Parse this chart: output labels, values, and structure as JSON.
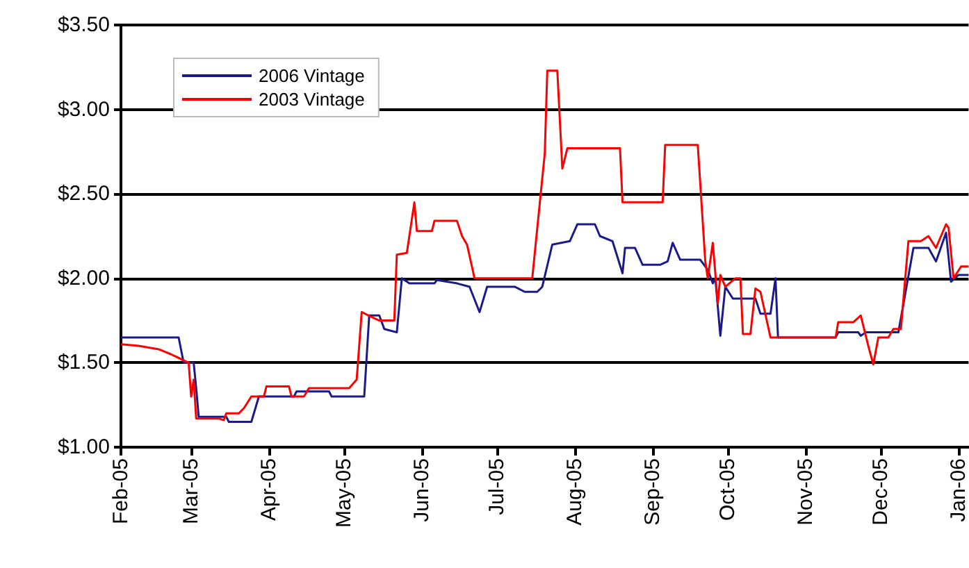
{
  "chart_data": {
    "type": "line",
    "legend": "top left",
    "grid": "y",
    "marker": "none",
    "line_style": "solid",
    "xlim": [
      "2005-02-01",
      "2006-01-05"
    ],
    "xticks": [
      {
        "value": "2005-02-01",
        "label": "Feb-05"
      },
      {
        "value": "2005-03-01",
        "label": "Mar-05"
      },
      {
        "value": "2005-04-01",
        "label": "Apr-05"
      },
      {
        "value": "2005-05-01",
        "label": "May-05"
      },
      {
        "value": "2005-06-01",
        "label": "Jun-05"
      },
      {
        "value": "2005-07-01",
        "label": "Jul-05"
      },
      {
        "value": "2005-08-01",
        "label": "Aug-05"
      },
      {
        "value": "2005-09-01",
        "label": "Sep-05"
      },
      {
        "value": "2005-10-01",
        "label": "Oct-05"
      },
      {
        "value": "2005-11-01",
        "label": "Nov-05"
      },
      {
        "value": "2005-12-01",
        "label": "Dec-05"
      },
      {
        "value": "2006-01-01",
        "label": "Jan-06"
      }
    ],
    "ylim": [
      1,
      3.5
    ],
    "yticks": [
      {
        "value": 1,
        "label": "$1.00"
      },
      {
        "value": 1.5,
        "label": "$1.50"
      },
      {
        "value": 2,
        "label": "$2.00"
      },
      {
        "value": 2.5,
        "label": "$2.50"
      },
      {
        "value": 3,
        "label": "$3.00"
      },
      {
        "value": 3.5,
        "label": "$3.50"
      }
    ],
    "series": [
      {
        "name": "2006 Vintage",
        "color": "#1a1a8c",
        "x": [
          "2005-02-01",
          "2005-02-24",
          "2005-02-26",
          "2005-03-02",
          "2005-03-03",
          "2005-03-04",
          "2005-03-15",
          "2005-03-16",
          "2005-03-25",
          "2005-03-28",
          "2005-04-11",
          "2005-04-12",
          "2005-04-25",
          "2005-04-26",
          "2005-05-09",
          "2005-05-11",
          "2005-05-15",
          "2005-05-17",
          "2005-05-22",
          "2005-05-24",
          "2005-05-27",
          "2005-06-06",
          "2005-06-07",
          "2005-06-15",
          "2005-06-20",
          "2005-06-24",
          "2005-06-27",
          "2005-07-08",
          "2005-07-12",
          "2005-07-17",
          "2005-07-19",
          "2005-07-23",
          "2005-07-30",
          "2005-08-02",
          "2005-08-09",
          "2005-08-11",
          "2005-08-16",
          "2005-08-20",
          "2005-08-21",
          "2005-08-25",
          "2005-08-28",
          "2005-09-04",
          "2005-09-07",
          "2005-09-09",
          "2005-09-12",
          "2005-09-20",
          "2005-09-23",
          "2005-09-25",
          "2005-09-26",
          "2005-09-28",
          "2005-09-30",
          "2005-10-03",
          "2005-10-12",
          "2005-10-14",
          "2005-10-18",
          "2005-10-20",
          "2005-10-21",
          "2005-11-13",
          "2005-11-14",
          "2005-11-22",
          "2005-11-23",
          "2005-11-25",
          "2005-12-08",
          "2005-12-14",
          "2005-12-20",
          "2005-12-23",
          "2005-12-27",
          "2005-12-29",
          "2006-01-01",
          "2006-01-05"
        ],
        "values": [
          1.65,
          1.65,
          1.5,
          1.5,
          1.35,
          1.18,
          1.18,
          1.15,
          1.15,
          1.3,
          1.3,
          1.33,
          1.33,
          1.3,
          1.3,
          1.78,
          1.78,
          1.7,
          1.68,
          2.0,
          1.97,
          1.97,
          1.99,
          1.97,
          1.95,
          1.8,
          1.95,
          1.95,
          1.92,
          1.92,
          1.95,
          2.2,
          2.22,
          2.32,
          2.32,
          2.25,
          2.22,
          2.03,
          2.18,
          2.18,
          2.08,
          2.08,
          2.1,
          2.21,
          2.11,
          2.11,
          2.05,
          1.97,
          2.0,
          1.66,
          1.95,
          1.88,
          1.88,
          1.79,
          1.79,
          2.0,
          1.65,
          1.65,
          1.68,
          1.68,
          1.66,
          1.68,
          1.68,
          2.18,
          2.18,
          2.1,
          2.27,
          1.98,
          2.02,
          2.02
        ]
      },
      {
        "name": "2003 Vintage",
        "color": "#ff0000",
        "x": [
          "2005-02-01",
          "2005-02-08",
          "2005-02-16",
          "2005-02-21",
          "2005-02-28",
          "2005-03-01",
          "2005-03-02",
          "2005-03-03",
          "2005-03-12",
          "2005-03-14",
          "2005-03-15",
          "2005-03-20",
          "2005-03-22",
          "2005-03-25",
          "2005-03-30",
          "2005-03-31",
          "2005-04-09",
          "2005-04-10",
          "2005-04-15",
          "2005-04-17",
          "2005-05-03",
          "2005-05-06",
          "2005-05-08",
          "2005-05-12",
          "2005-05-15",
          "2005-05-21",
          "2005-05-22",
          "2005-05-26",
          "2005-05-29",
          "2005-05-30",
          "2005-06-05",
          "2005-06-06",
          "2005-06-15",
          "2005-06-17",
          "2005-06-19",
          "2005-06-22",
          "2005-07-15",
          "2005-07-20",
          "2005-07-21",
          "2005-07-25",
          "2005-07-27",
          "2005-07-29",
          "2005-08-19",
          "2005-08-20",
          "2005-09-05",
          "2005-09-06",
          "2005-09-19",
          "2005-09-22",
          "2005-09-23",
          "2005-09-25",
          "2005-09-27",
          "2005-09-28",
          "2005-09-30",
          "2005-10-04",
          "2005-10-06",
          "2005-10-07",
          "2005-10-10",
          "2005-10-12",
          "2005-10-14",
          "2005-10-18",
          "2005-11-13",
          "2005-11-14",
          "2005-11-20",
          "2005-11-23",
          "2005-11-26",
          "2005-11-28",
          "2005-11-30",
          "2005-12-04",
          "2005-12-06",
          "2005-12-09",
          "2005-12-12",
          "2005-12-17",
          "2005-12-20",
          "2005-12-23",
          "2005-12-27",
          "2005-12-28",
          "2005-12-30",
          "2006-01-02",
          "2006-01-05"
        ],
        "values": [
          1.61,
          1.6,
          1.58,
          1.55,
          1.5,
          1.3,
          1.4,
          1.17,
          1.17,
          1.16,
          1.2,
          1.2,
          1.23,
          1.3,
          1.3,
          1.36,
          1.36,
          1.3,
          1.3,
          1.35,
          1.35,
          1.4,
          1.8,
          1.77,
          1.75,
          1.75,
          2.14,
          2.15,
          2.45,
          2.28,
          2.28,
          2.34,
          2.34,
          2.25,
          2.2,
          2.0,
          2.0,
          2.74,
          3.23,
          3.23,
          2.65,
          2.77,
          2.77,
          2.45,
          2.45,
          2.79,
          2.79,
          2.1,
          2.0,
          2.21,
          1.85,
          2.02,
          1.95,
          2.0,
          2.0,
          1.67,
          1.67,
          1.94,
          1.92,
          1.65,
          1.65,
          1.74,
          1.74,
          1.78,
          1.6,
          1.49,
          1.65,
          1.65,
          1.7,
          1.7,
          2.22,
          2.22,
          2.25,
          2.18,
          2.32,
          2.3,
          2.0,
          2.07,
          2.07
        ]
      }
    ]
  }
}
